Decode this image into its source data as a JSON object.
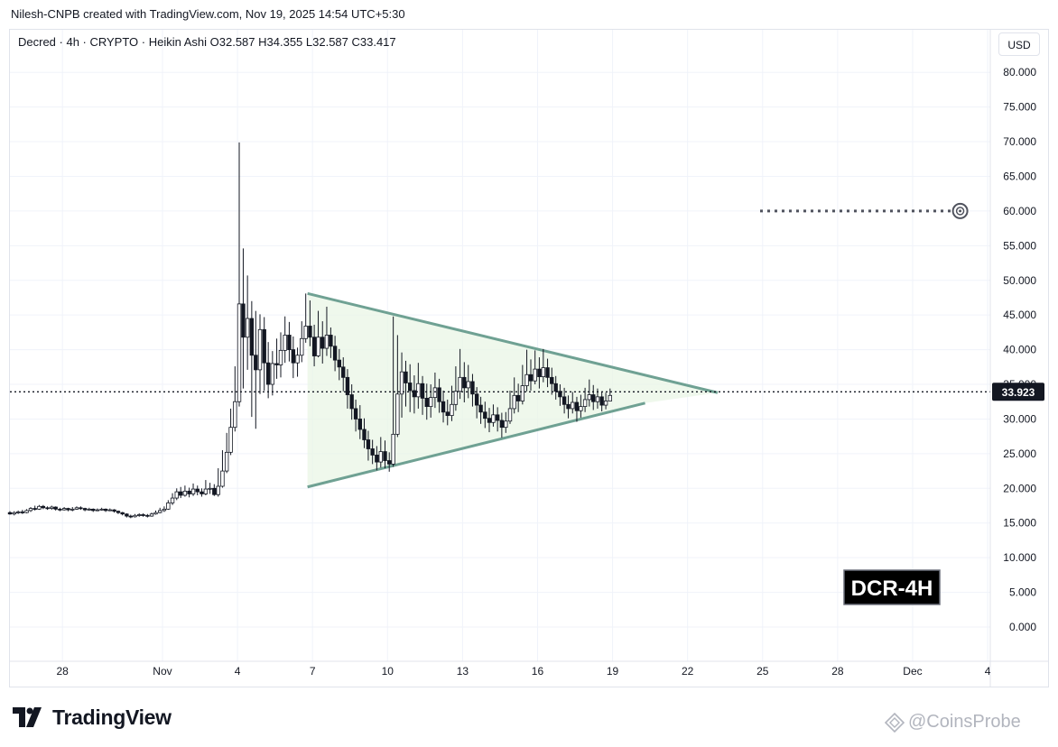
{
  "header": {
    "publisher_line": "Nilesh-CNPB created with TradingView.com, Nov 19, 2025 14:54 UTC+5:30"
  },
  "legend": {
    "line": "Decred · 4h · CRYPTO · Heikin Ashi  O32.587  H34.355  L32.587  C33.417"
  },
  "currency": "USD",
  "badge": "DCR-4H",
  "footer": {
    "brand": "TradingView",
    "watermark": "@CoinsProbe"
  },
  "colors": {
    "candle": "#131722",
    "triangle_line": "#6fa193",
    "triangle_fill": "#e9f5e6",
    "grid": "#f0f3fa",
    "badge_bg": "#000000",
    "badge_text": "#ffffff"
  },
  "chart_data": {
    "type": "candlestick",
    "symbol": "Decred",
    "timeframe": "4h",
    "style": "Heikin Ashi",
    "ohlc": {
      "open": 32.587,
      "high": 34.355,
      "low": 32.587,
      "close": 33.417
    },
    "last_price": 33.923,
    "y_ticks": [
      "80.000",
      "75.000",
      "70.000",
      "65.000",
      "60.000",
      "55.000",
      "50.000",
      "45.000",
      "40.000",
      "35.000",
      "30.000",
      "25.000",
      "20.000",
      "15.000",
      "10.000",
      "5.000",
      "0.000"
    ],
    "x_ticks": [
      {
        "label": "28",
        "day": 28
      },
      {
        "label": "Nov",
        "day": 32
      },
      {
        "label": "4",
        "day": 35
      },
      {
        "label": "7",
        "day": 38
      },
      {
        "label": "10",
        "day": 41
      },
      {
        "label": "13",
        "day": 44
      },
      {
        "label": "16",
        "day": 47
      },
      {
        "label": "19",
        "day": 50
      },
      {
        "label": "22",
        "day": 53
      },
      {
        "label": "25",
        "day": 56
      },
      {
        "label": "28",
        "day": 59
      },
      {
        "label": "Dec",
        "day": 62
      },
      {
        "label": "4",
        "day": 65
      }
    ],
    "ylim": [
      -4,
      84
    ],
    "xlim": [
      25.9,
      66.05
    ],
    "grid": true,
    "target_level": {
      "value": 60.0,
      "from_day": 55.9,
      "to_day": 63.9
    },
    "pattern": {
      "type": "symmetrical triangle",
      "upper": [
        [
          37.8,
          48.1
        ],
        [
          54.2,
          33.8
        ]
      ],
      "lower": [
        [
          37.8,
          20.2
        ],
        [
          51.3,
          32.3
        ]
      ]
    },
    "candles": [
      [
        25.9,
        16.5,
        16.3,
        16.7,
        16.2
      ],
      [
        26.07,
        16.3,
        16.5,
        16.7,
        16.1
      ],
      [
        26.23,
        16.5,
        16.6,
        16.8,
        16.3
      ],
      [
        26.4,
        16.6,
        16.5,
        16.9,
        16.3
      ],
      [
        26.57,
        16.5,
        16.8,
        17.0,
        16.4
      ],
      [
        26.73,
        16.8,
        17.1,
        17.3,
        16.6
      ],
      [
        26.9,
        17.1,
        17.0,
        17.5,
        16.8
      ],
      [
        27.07,
        17.0,
        17.4,
        17.6,
        16.9
      ],
      [
        27.23,
        17.4,
        17.2,
        17.6,
        17.0
      ],
      [
        27.4,
        17.2,
        17.1,
        17.4,
        16.9
      ],
      [
        27.57,
        17.1,
        17.3,
        17.5,
        16.9
      ],
      [
        27.73,
        17.3,
        17.0,
        17.4,
        16.8
      ],
      [
        27.9,
        17.0,
        16.9,
        17.2,
        16.7
      ],
      [
        28.07,
        16.9,
        17.1,
        17.3,
        16.8
      ],
      [
        28.23,
        17.1,
        16.9,
        17.2,
        16.7
      ],
      [
        28.4,
        16.9,
        17.0,
        17.3,
        16.7
      ],
      [
        28.57,
        17.0,
        17.2,
        17.4,
        16.9
      ],
      [
        28.73,
        17.2,
        17.1,
        17.4,
        16.9
      ],
      [
        28.9,
        17.1,
        16.9,
        17.2,
        16.7
      ],
      [
        29.07,
        16.9,
        17.0,
        17.2,
        16.8
      ],
      [
        29.23,
        17.0,
        16.8,
        17.1,
        16.6
      ],
      [
        29.4,
        16.8,
        16.9,
        17.1,
        16.7
      ],
      [
        29.57,
        16.9,
        17.0,
        17.2,
        16.8
      ],
      [
        29.73,
        17.0,
        16.8,
        17.1,
        16.6
      ],
      [
        29.9,
        16.8,
        16.9,
        17.1,
        16.7
      ],
      [
        30.07,
        16.9,
        16.7,
        17.0,
        16.5
      ],
      [
        30.23,
        16.7,
        16.5,
        16.8,
        16.3
      ],
      [
        30.4,
        16.5,
        16.3,
        16.6,
        16.1
      ],
      [
        30.57,
        16.3,
        16.0,
        16.4,
        15.8
      ],
      [
        30.73,
        16.0,
        15.9,
        16.2,
        15.7
      ],
      [
        30.9,
        15.9,
        16.1,
        16.3,
        15.8
      ],
      [
        31.07,
        16.1,
        16.2,
        16.4,
        15.9
      ],
      [
        31.23,
        16.2,
        16.1,
        16.4,
        15.9
      ],
      [
        31.4,
        16.1,
        16.0,
        16.3,
        15.8
      ],
      [
        31.57,
        16.0,
        16.3,
        16.5,
        15.9
      ],
      [
        31.73,
        16.3,
        16.5,
        16.8,
        16.2
      ],
      [
        31.9,
        16.5,
        16.8,
        17.2,
        16.4
      ],
      [
        32.07,
        16.8,
        17.0,
        17.4,
        16.6
      ],
      [
        32.23,
        17.0,
        17.9,
        18.3,
        16.9
      ],
      [
        32.4,
        17.9,
        18.6,
        19.3,
        17.6
      ],
      [
        32.57,
        18.6,
        19.5,
        20.0,
        18.3
      ],
      [
        32.73,
        19.5,
        19.0,
        20.2,
        18.6
      ],
      [
        32.9,
        19.0,
        19.6,
        20.4,
        18.8
      ],
      [
        33.07,
        19.6,
        19.2,
        20.1,
        18.7
      ],
      [
        33.23,
        19.2,
        19.9,
        20.7,
        18.9
      ],
      [
        33.4,
        19.9,
        19.5,
        20.4,
        19.0
      ],
      [
        33.57,
        19.5,
        19.2,
        20.0,
        18.8
      ],
      [
        33.73,
        19.2,
        19.9,
        21.2,
        19.0
      ],
      [
        33.9,
        19.9,
        20.0,
        20.8,
        19.2
      ],
      [
        34.07,
        20.0,
        19.1,
        20.6,
        18.9
      ],
      [
        34.23,
        19.1,
        20.3,
        22.9,
        18.8
      ],
      [
        34.4,
        20.3,
        22.5,
        25.5,
        20.1
      ],
      [
        34.57,
        22.5,
        25.2,
        28.0,
        22.2
      ],
      [
        34.73,
        25.2,
        28.8,
        31.5,
        24.8
      ],
      [
        34.9,
        28.8,
        32.5,
        37.6,
        28.2
      ],
      [
        35.07,
        32.5,
        46.6,
        69.9,
        31.8
      ],
      [
        35.23,
        46.6,
        41.8,
        54.6,
        34.4
      ],
      [
        35.4,
        41.8,
        44.5,
        50.7,
        37.1
      ],
      [
        35.57,
        44.5,
        39.2,
        47.0,
        30.3
      ],
      [
        35.73,
        39.2,
        37.1,
        45.6,
        28.6
      ],
      [
        35.9,
        37.1,
        42.9,
        45.1,
        33.6
      ],
      [
        36.07,
        42.9,
        38.1,
        44.7,
        34.1
      ],
      [
        36.23,
        38.1,
        35.0,
        41.1,
        33.0
      ],
      [
        36.4,
        35.0,
        38.0,
        39.8,
        33.4
      ],
      [
        36.57,
        38.0,
        37.8,
        41.6,
        35.8
      ],
      [
        36.73,
        37.8,
        39.9,
        42.5,
        36.0
      ],
      [
        36.9,
        39.9,
        42.1,
        44.8,
        38.1
      ],
      [
        37.07,
        42.1,
        40.0,
        44.0,
        38.3
      ],
      [
        37.23,
        40.0,
        38.1,
        41.9,
        35.9
      ],
      [
        37.4,
        38.1,
        39.2,
        40.3,
        36.1
      ],
      [
        37.57,
        39.2,
        41.6,
        44.1,
        38.2
      ],
      [
        37.73,
        41.6,
        43.4,
        48.1,
        41.0
      ],
      [
        37.9,
        43.4,
        41.8,
        47.1,
        40.5
      ],
      [
        38.07,
        41.8,
        39.1,
        43.6,
        37.6
      ],
      [
        38.23,
        39.1,
        41.8,
        45.6,
        38.9
      ],
      [
        38.4,
        41.8,
        40.2,
        44.1,
        38.0
      ],
      [
        38.57,
        40.2,
        42.1,
        46.2,
        39.1
      ],
      [
        38.73,
        42.1,
        40.5,
        43.2,
        38.8
      ],
      [
        38.9,
        40.5,
        38.5,
        42.0,
        36.9
      ],
      [
        39.07,
        38.5,
        37.5,
        40.1,
        35.6
      ],
      [
        39.23,
        37.5,
        36.0,
        38.9,
        34.0
      ],
      [
        39.4,
        36.0,
        33.5,
        37.2,
        31.5
      ],
      [
        39.57,
        33.5,
        31.5,
        35.0,
        29.9
      ],
      [
        39.73,
        31.5,
        30.0,
        32.8,
        28.2
      ],
      [
        39.9,
        30.0,
        28.5,
        32.0,
        27.1
      ],
      [
        40.07,
        28.5,
        27.0,
        30.1,
        25.8
      ],
      [
        40.23,
        27.0,
        25.7,
        28.3,
        24.0
      ],
      [
        40.4,
        25.7,
        24.8,
        27.0,
        23.5
      ],
      [
        40.57,
        24.8,
        23.8,
        26.1,
        22.6
      ],
      [
        40.73,
        23.8,
        25.3,
        27.4,
        23.0
      ],
      [
        40.9,
        25.3,
        24.0,
        26.9,
        22.9
      ],
      [
        41.07,
        24.0,
        23.5,
        25.2,
        22.4
      ],
      [
        41.23,
        23.5,
        27.8,
        44.8,
        23.1
      ],
      [
        41.4,
        27.8,
        33.6,
        42.1,
        27.4
      ],
      [
        41.57,
        33.6,
        36.8,
        39.6,
        30.2
      ],
      [
        41.73,
        36.8,
        35.2,
        38.4,
        31.8
      ],
      [
        41.9,
        35.2,
        34.1,
        37.9,
        31.0
      ],
      [
        42.07,
        34.1,
        33.2,
        36.3,
        30.8
      ],
      [
        42.23,
        33.2,
        35.1,
        38.1,
        31.5
      ],
      [
        42.4,
        35.1,
        33.0,
        36.2,
        30.6
      ],
      [
        42.57,
        33.0,
        31.8,
        35.1,
        29.9
      ],
      [
        42.73,
        31.8,
        33.1,
        35.0,
        30.2
      ],
      [
        42.9,
        33.1,
        34.5,
        36.7,
        31.6
      ],
      [
        43.07,
        34.5,
        32.5,
        35.8,
        30.9
      ],
      [
        43.23,
        32.5,
        31.0,
        34.1,
        29.5
      ],
      [
        43.4,
        31.0,
        30.5,
        32.8,
        29.1
      ],
      [
        43.57,
        30.5,
        32.1,
        34.8,
        29.7
      ],
      [
        43.73,
        32.1,
        34.0,
        37.6,
        31.2
      ],
      [
        43.9,
        34.0,
        36.0,
        40.1,
        32.9
      ],
      [
        44.07,
        36.0,
        34.5,
        38.2,
        32.4
      ],
      [
        44.23,
        34.5,
        35.4,
        37.8,
        33.0
      ],
      [
        44.4,
        35.4,
        33.6,
        36.5,
        31.8
      ],
      [
        44.57,
        33.6,
        32.0,
        34.6,
        30.1
      ],
      [
        44.73,
        32.0,
        31.0,
        33.2,
        29.3
      ],
      [
        44.9,
        31.0,
        30.1,
        32.5,
        28.7
      ],
      [
        45.07,
        30.1,
        29.5,
        31.6,
        28.1
      ],
      [
        45.23,
        29.5,
        30.6,
        32.1,
        28.9
      ],
      [
        45.4,
        30.6,
        29.8,
        31.7,
        28.2
      ],
      [
        45.57,
        29.8,
        28.8,
        30.9,
        27.3
      ],
      [
        45.73,
        28.8,
        29.7,
        31.0,
        28.0
      ],
      [
        45.9,
        29.7,
        31.5,
        34.1,
        29.3
      ],
      [
        46.07,
        31.5,
        33.4,
        36.0,
        30.8
      ],
      [
        46.23,
        33.4,
        32.6,
        35.1,
        31.0
      ],
      [
        46.4,
        32.6,
        34.8,
        37.8,
        32.1
      ],
      [
        46.57,
        34.8,
        36.4,
        40.0,
        34.0
      ],
      [
        46.73,
        36.4,
        35.5,
        38.6,
        34.1
      ],
      [
        46.9,
        35.5,
        37.2,
        39.9,
        35.0
      ],
      [
        47.07,
        37.2,
        36.1,
        38.9,
        34.4
      ],
      [
        47.23,
        36.1,
        37.4,
        40.1,
        35.3
      ],
      [
        47.4,
        37.4,
        36.0,
        38.7,
        34.6
      ],
      [
        47.57,
        36.0,
        35.1,
        37.4,
        33.5
      ],
      [
        47.73,
        35.1,
        34.0,
        36.2,
        32.8
      ],
      [
        47.9,
        34.0,
        33.2,
        35.0,
        31.9
      ],
      [
        48.07,
        33.2,
        32.1,
        34.5,
        30.8
      ],
      [
        48.23,
        32.1,
        31.5,
        33.4,
        30.1
      ],
      [
        48.4,
        31.5,
        32.4,
        33.9,
        30.8
      ],
      [
        48.57,
        32.4,
        31.2,
        33.2,
        29.6
      ],
      [
        48.73,
        31.2,
        31.8,
        33.5,
        30.2
      ],
      [
        48.9,
        31.8,
        32.8,
        34.5,
        31.0
      ],
      [
        49.07,
        32.8,
        33.5,
        35.7,
        31.8
      ],
      [
        49.23,
        33.5,
        32.5,
        34.9,
        31.3
      ],
      [
        49.4,
        32.5,
        33.2,
        34.4,
        31.5
      ],
      [
        49.57,
        33.2,
        32.0,
        33.9,
        31.1
      ],
      [
        49.73,
        32.0,
        32.6,
        33.8,
        31.4
      ],
      [
        49.9,
        32.6,
        33.4,
        34.4,
        32.6
      ]
    ]
  }
}
